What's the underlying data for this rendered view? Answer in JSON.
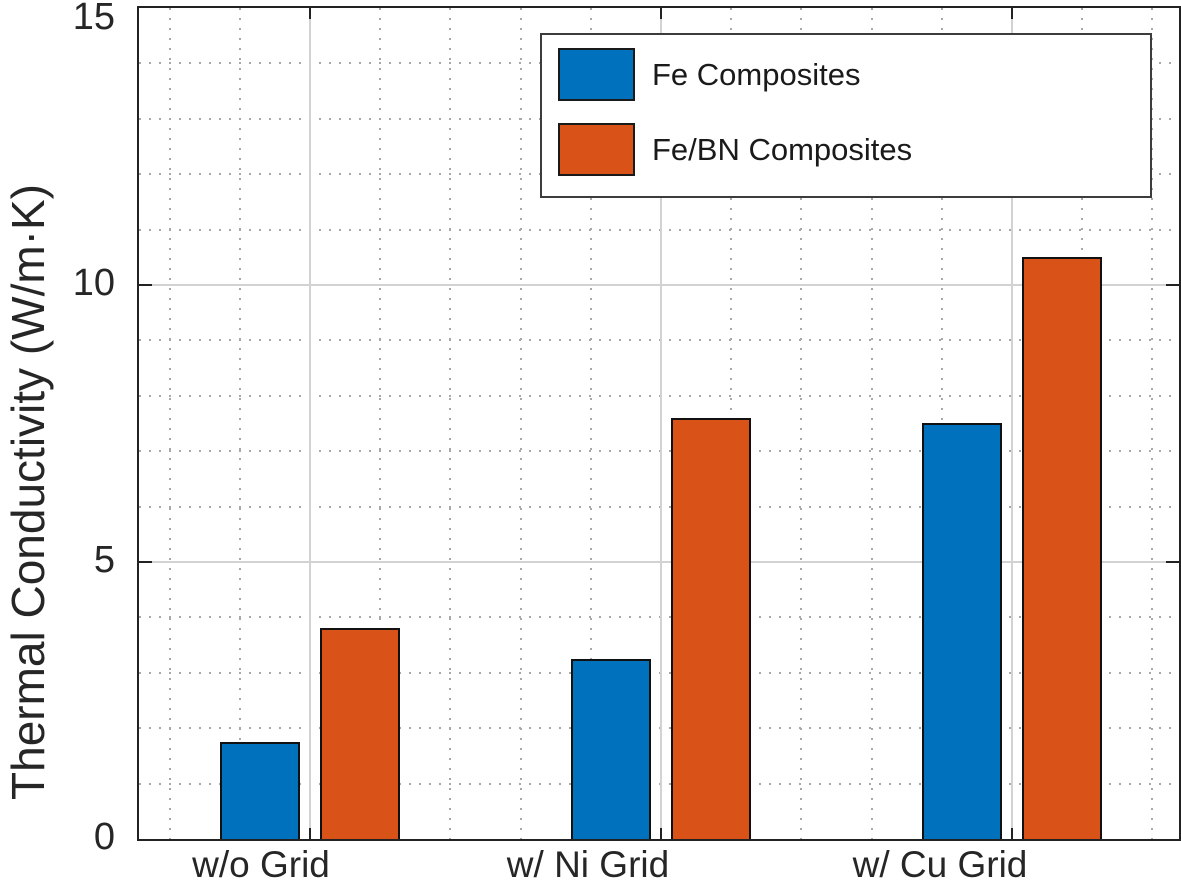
{
  "chart_data": {
    "type": "bar",
    "title": "",
    "categories": [
      "w/o Grid",
      "w/ Ni Grid",
      "w/ Cu Grid"
    ],
    "series": [
      {
        "name": "Fe Composites",
        "color": "#0072BD",
        "values": [
          1.75,
          3.25,
          7.5
        ]
      },
      {
        "name": "Fe/BN Composites",
        "color": "#D95319",
        "values": [
          3.8,
          7.6,
          10.5
        ]
      }
    ],
    "xlabel": "",
    "ylabel": "Thermal Conductivity (W/m·K)",
    "ylim": [
      0,
      15
    ],
    "yticks": [
      0,
      5,
      10,
      15
    ],
    "ytick_labels": [
      "0",
      "5",
      "10",
      "15"
    ],
    "minor_y_step": 1,
    "grid": "major solid gray on both axes, minor dotted gray on both axes, box on",
    "legend_position": "inside top-right",
    "bar_edge_color": "#111111"
  },
  "legend": {
    "items": [
      {
        "label": "Fe Composites",
        "color": "#0072BD"
      },
      {
        "label": "Fe/BN Composites",
        "color": "#D95319"
      }
    ]
  },
  "axes": {
    "y_title": "Thermal Conductivity (W/m·K)"
  },
  "colors": {
    "fe_blue": "#0072BD",
    "febn_orange": "#D95319",
    "axis": "#222222",
    "grid_major": "#d2d2d2",
    "grid_minor_dot": "#a8a8a8",
    "background": "#ffffff"
  }
}
